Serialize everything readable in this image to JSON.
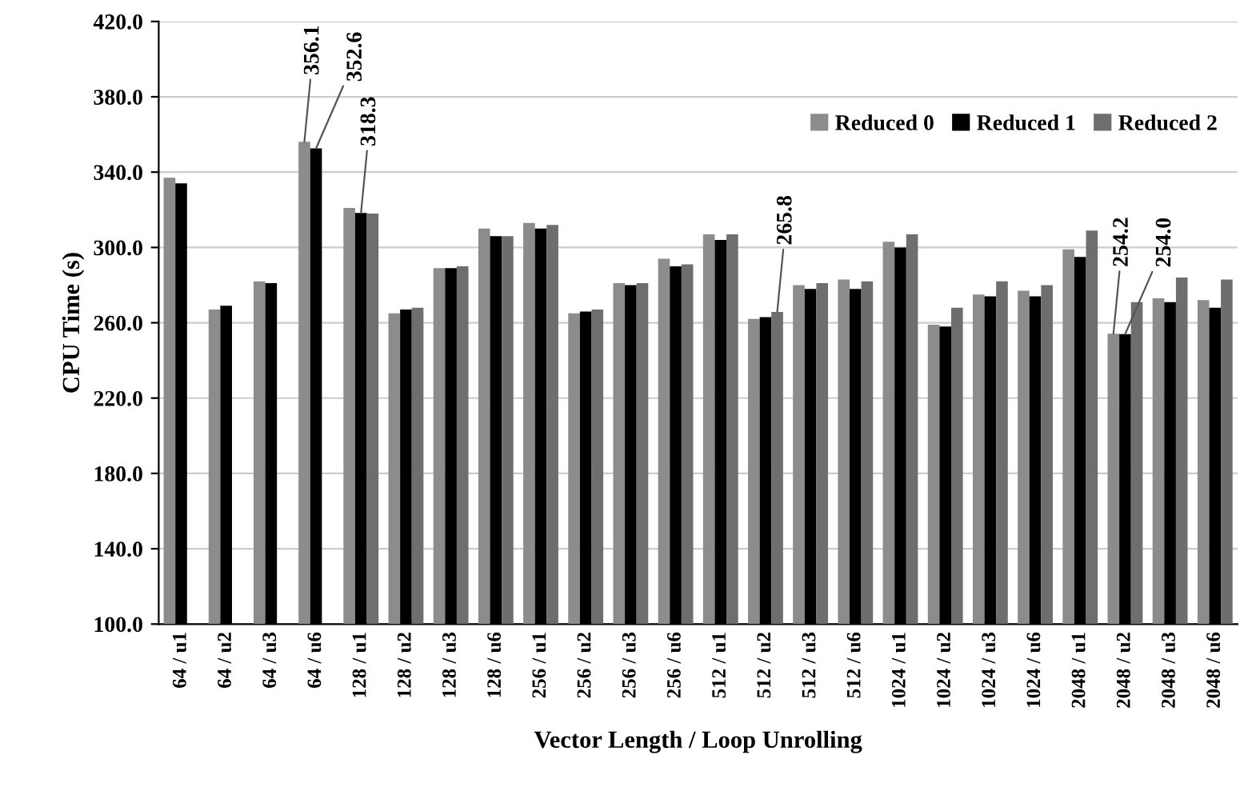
{
  "chart_data": {
    "type": "bar",
    "xlabel": "Vector Length / Loop Unrolling",
    "ylabel": "CPU Time (s)",
    "categories": [
      "64 / u1",
      "64 / u2",
      "64 / u3",
      "64 / u6",
      "128 / u1",
      "128 / u2",
      "128 / u3",
      "128 / u6",
      "256 / u1",
      "256 / u2",
      "256 / u3",
      "256 / u6",
      "512 / u1",
      "512 / u2",
      "512 / u3",
      "512 / u6",
      "1024 / u1",
      "1024 / u2",
      "1024 / u3",
      "1024 / u6",
      "2048 / u1",
      "2048 / u2",
      "2048 / u3",
      "2048 / u6"
    ],
    "series": [
      {
        "name": "Reduced 0",
        "color": "#8c8c8c",
        "values": [
          337,
          267,
          282,
          356.1,
          321,
          265,
          289,
          310,
          313,
          265,
          281,
          294,
          307,
          262,
          280,
          283,
          303,
          259,
          275,
          277,
          299,
          254.2,
          273,
          272
        ],
        "value_labels": [
          null,
          null,
          null,
          "356.1",
          null,
          null,
          null,
          null,
          null,
          null,
          null,
          null,
          null,
          null,
          null,
          null,
          null,
          null,
          null,
          null,
          null,
          "254.2",
          null,
          null
        ]
      },
      {
        "name": "Reduced 1",
        "color": "#000000",
        "values": [
          334,
          269,
          281,
          352.6,
          318.3,
          267,
          289,
          306,
          310,
          266,
          280,
          290,
          304,
          263,
          278,
          278,
          300,
          258,
          274,
          274,
          295,
          254.0,
          271,
          268
        ],
        "value_labels": [
          null,
          null,
          null,
          "352.6",
          "318.3",
          null,
          null,
          null,
          null,
          null,
          null,
          null,
          null,
          null,
          null,
          null,
          null,
          null,
          null,
          null,
          null,
          "254.0",
          null,
          null
        ]
      },
      {
        "name": "Reduced 2",
        "color": "#6e6e6e",
        "values": [
          null,
          null,
          null,
          null,
          318,
          268,
          290,
          306,
          312,
          267,
          281,
          291,
          307,
          265.8,
          281,
          282,
          307,
          268,
          282,
          280,
          309,
          271,
          284,
          283
        ],
        "value_labels": [
          null,
          null,
          null,
          null,
          null,
          null,
          null,
          null,
          null,
          null,
          null,
          null,
          null,
          "265.8",
          null,
          null,
          null,
          null,
          null,
          null,
          null,
          null,
          null,
          null
        ]
      }
    ],
    "ylim": [
      100,
      420
    ],
    "yticks": [
      {
        "value": 100,
        "label": "100.0"
      },
      {
        "value": 140,
        "label": "140.0"
      },
      {
        "value": 180,
        "label": "180.0"
      },
      {
        "value": 220,
        "label": "220.0"
      },
      {
        "value": 260,
        "label": "260.0"
      },
      {
        "value": 300,
        "label": "300.0"
      },
      {
        "value": 340,
        "label": "340.0"
      },
      {
        "value": 380,
        "label": "380.0"
      },
      {
        "value": 420,
        "label": "420.0"
      }
    ],
    "grid": "y",
    "legend": "top right"
  }
}
